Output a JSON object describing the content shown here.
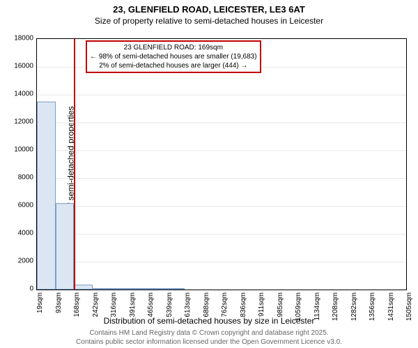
{
  "title": "23, GLENFIELD ROAD, LEICESTER, LE3 6AT",
  "subtitle": "Size of property relative to semi-detached houses in Leicester",
  "y_axis_label": "Number of semi-detached properties",
  "x_axis_label": "Distribution of semi-detached houses by size in Leicester",
  "footer_line1": "Contains HM Land Registry data © Crown copyright and database right 2025.",
  "footer_line2": "Contains public sector information licensed under the Open Government Licence v3.0.",
  "chart": {
    "type": "histogram",
    "background_color": "#ffffff",
    "grid_color": "#e8e8e8",
    "border_color": "#000000",
    "bar_fill_color": "#dce6f2",
    "bar_border_color": "#7a9cc6",
    "marker_color": "#c00000",
    "ylim": [
      0,
      18000
    ],
    "ytick_step": 2000,
    "y_ticks": [
      0,
      2000,
      4000,
      6000,
      8000,
      10000,
      12000,
      14000,
      16000,
      18000
    ],
    "x_tick_labels": [
      "19sqm",
      "93sqm",
      "168sqm",
      "242sqm",
      "316sqm",
      "391sqm",
      "465sqm",
      "539sqm",
      "613sqm",
      "688sqm",
      "762sqm",
      "836sqm",
      "911sqm",
      "985sqm",
      "1059sqm",
      "1134sqm",
      "1208sqm",
      "1282sqm",
      "1356sqm",
      "1431sqm",
      "1505sqm"
    ],
    "bars": [
      {
        "value": 13500
      },
      {
        "value": 6200
      },
      {
        "value": 350
      },
      {
        "value": 60
      },
      {
        "value": 30
      },
      {
        "value": 20
      },
      {
        "value": 10
      },
      {
        "value": 10
      }
    ],
    "marker_position_sqm": 169,
    "annotation": {
      "line1": "23 GLENFIELD ROAD: 169sqm",
      "line2": "← 98% of semi-detached houses are smaller (19,683)",
      "line3": "2% of semi-detached houses are larger (444) →"
    },
    "title_fontsize": 13,
    "label_fontsize": 12,
    "tick_fontsize": 10
  }
}
